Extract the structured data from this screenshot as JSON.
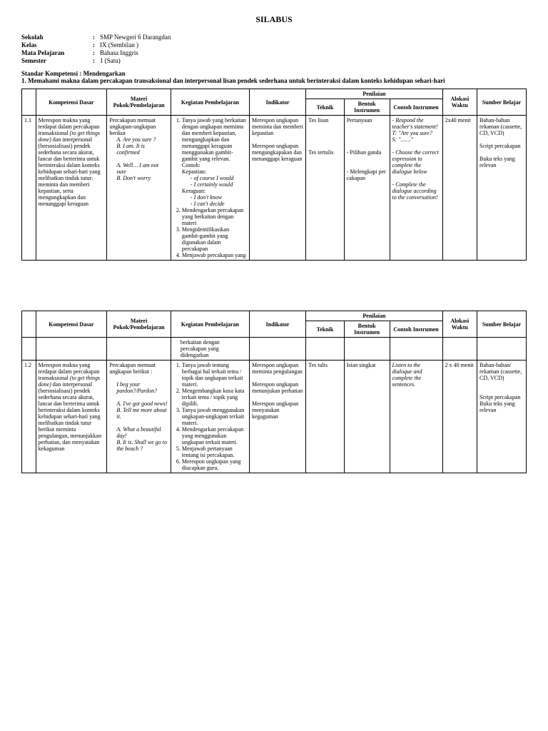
{
  "title": "SILABUS",
  "meta": {
    "sekolah_label": "Sekolah",
    "sekolah": "SMP Newgeri 6 Darangdan",
    "kelas_label": "Kelas",
    "kelas": "IX (Sembilan )",
    "mapel_label": "Mata Pelajaran",
    "mapel": "Bahasa Inggris",
    "semester_label": "Semester",
    "semester": "1 (Satu)"
  },
  "standar_label": "Standar Kompetensi : Mendengarkan",
  "standar_item": "1.   Memahami makna   dalam percakapan transaksional dan interpersonal lisan pendek sederhana untuk berinteraksi dalam konteks kehidupan sehari-hari",
  "headers": {
    "kd": "Kompetensi Dasar",
    "materi": "Materi Pokok/Pembelajaran",
    "kegiatan": "Kegiatan Pembelajaran",
    "indikator": "Indikator",
    "penilaian": "Penilaian",
    "teknik": "Teknik",
    "bentuk": "Bentuk Instrumen",
    "contoh": "Contoh Instrumen",
    "alokasi": "Alokasi Waktu",
    "sumber": "Sumber Belajar"
  },
  "row1": {
    "no": "1.1",
    "kd_1": "Merespon makna yang terdapat dalam percakapan transaksional ",
    "kd_2": "(to get things done)",
    "kd_3": " dan interpersonal (bersosialisasi) pendek sederhana secara akurat, lancar dan berterima untuk berinteraksi dalam konteks kehidupan sehari-hari yang melibatkan tindak tutur: meminta dan memberi kepastian, serta mengungkapkan dan menanggapi keraguan",
    "materi_head": "Percakapan memuat ungkapan-ungkapan berikut",
    "materi_a1": "A.  Are you sure ?",
    "materi_b1": "B.  I am. It is confirmed",
    "materi_a2": "A.  Well… I am not sure",
    "materi_b2": "B.  Don't worry",
    "keg_1": "Tanya jawab yang berkaitan dengan ungkapan meminta dan memberi kepastian, mengungkapkan dan menanggapi keraguan menggunakan gambit-gambit yang relevan. Contoh:",
    "keg_kepastian": "Kepastian:",
    "keg_kp1": "of course I would",
    "keg_kp2": "I certainly would",
    "keg_keraguan": "Keraguan:",
    "keg_kr1": "I don't know",
    "keg_kr2": "I can't decide",
    "keg_2": "Mendengarkan percakapan yang berkaitan dengan materi",
    "keg_3": "Mengidentifikasikan gambit-gambit yang digunakan dalam percakapan",
    "keg_4": "Menjawab percakapan yang",
    "ind_1": "Merespon ungkapan meminta dan memberi kepastian",
    "ind_2": "Merespon ungkapan mengungkapakan dan menanggapi keraguan",
    "tek_1": "Tes lisan",
    "tek_2": "Tes tertulis",
    "ben_1": "Pertanyaan",
    "ben_2": "- Pilihan ganda",
    "ben_3": "- Melengkapi per cakapan",
    "con_1": "- Respond the teacher's statement!",
    "con_2": "T: \"Are you sure?",
    "con_3": "S: \"……\"",
    "con_4": "- Choose the correct expression to complete the dialogue below",
    "con_5": "- Complete the dialogue according to the conversation!",
    "alokasi": "2x40 menit",
    "sum_1": "Bahan-bahan rekaman (cassette, CD, VCD)",
    "sum_2": "Script percakapan",
    "sum_3": "Buku teks yang relevan"
  },
  "row1b": {
    "kegiatan": "berkaitan dengan percakapan yang didengarkan"
  },
  "row2": {
    "no": "1.2",
    "kd_1": "Merespon makna yang terdapat dalam percakapan transaksional ",
    "kd_2": "(to get things done)",
    "kd_3": " dan interpersonal (bersosialisasi) pendek sederhana secara akurat, lancar dan berterima untuk berinteraksi dalam konteks kehidupan sehari-hari yang melibatkan tindak tutur berikut meminta pengulangan, menunjukkan perhatian, dan menyatakan kekaguman",
    "materi_head": "Percakapan memuat ungkapan berikut :",
    "materi_1": "I beg your pardon?/Pardon?",
    "materi_a1": "A. I've got good news!",
    "materi_b1": "B. Tell me more about it.",
    "materi_a2": "A. What a beautiful day!",
    "materi_b2": "B. It is. Shall we go to the beach ?",
    "keg_1": "Tanya jawab tentang berbagai hal terkait tema / topik dan ungkapan terkait materi.",
    "keg_2": "Mengembangkan kosa kata terkait tema / topik yang dipilih.",
    "keg_3": "Tanya jawab menggunakan ungkapan-ungkapan terkait materi.",
    "keg_4": "Mendengarkan percakapan yang menggunakan ungkapan terkait materi.",
    "keg_5": "Menjawab pertanyaan tentang isi percakapan.",
    "keg_6": "Merespon ungkapan yang diucapkan guru.",
    "ind_1": "Merespon ungkapan meminta pengulangan",
    "ind_2": "Merespon ungkapan menunjukan perhatian",
    "ind_3": "Merespon ungkapan menyatakan kegaguman",
    "tek": "Tes tulis",
    "ben": "Isian singkat",
    "con": "Listen to the dialoque and complete the sentences.",
    "alokasi": "2 x 40 menit",
    "sum_1": "Bahan-bahan/ rekaman (cassette, CD, VCD)",
    "sum_2": "Script percakapan",
    "sum_3": "Buku teks yang relevan"
  }
}
